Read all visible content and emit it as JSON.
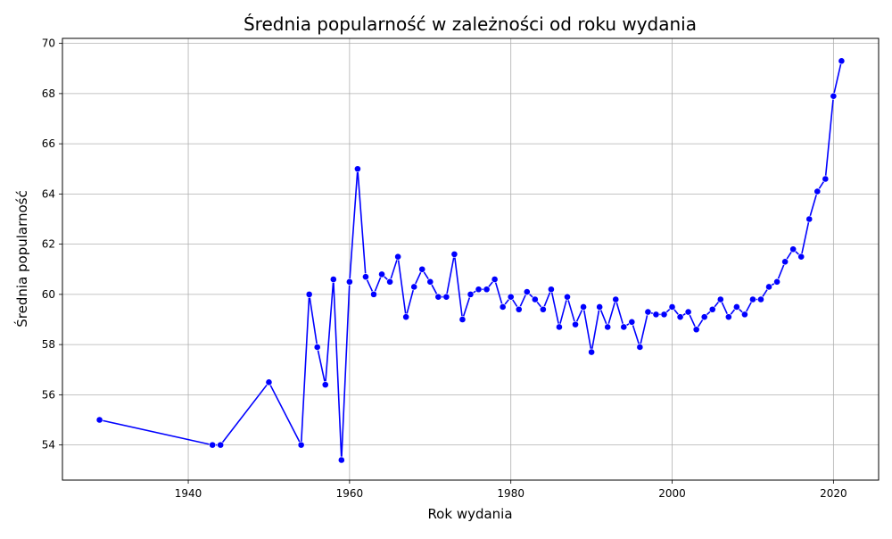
{
  "chart_data": {
    "type": "line",
    "title": "Średnia popularność w zależności od roku wydania",
    "xlabel": "Rok wydania",
    "ylabel": "Średnia popularność",
    "xlim": [
      1924.4,
      2025.6
    ],
    "ylim": [
      52.6,
      70.2
    ],
    "xticks": [
      1940,
      1960,
      1980,
      2000,
      2020
    ],
    "yticks": [
      54,
      56,
      58,
      60,
      62,
      64,
      66,
      68,
      70
    ],
    "grid": true,
    "legend": "none",
    "series": [
      {
        "color": "#0000ff",
        "marker": "circle",
        "x": [
          1929,
          1943,
          1944,
          1950,
          1954,
          1955,
          1956,
          1957,
          1958,
          1959,
          1960,
          1961,
          1962,
          1963,
          1964,
          1965,
          1966,
          1967,
          1968,
          1969,
          1970,
          1971,
          1972,
          1973,
          1974,
          1975,
          1976,
          1977,
          1978,
          1979,
          1980,
          1981,
          1982,
          1983,
          1984,
          1985,
          1986,
          1987,
          1988,
          1989,
          1990,
          1991,
          1992,
          1993,
          1994,
          1995,
          1996,
          1997,
          1998,
          1999,
          2000,
          2001,
          2002,
          2003,
          2004,
          2005,
          2006,
          2007,
          2008,
          2009,
          2010,
          2011,
          2012,
          2013,
          2014,
          2015,
          2016,
          2017,
          2018,
          2019,
          2020,
          2021
        ],
        "y": [
          55.0,
          54.0,
          54.0,
          56.5,
          54.0,
          60.0,
          57.9,
          56.4,
          60.6,
          53.4,
          60.5,
          65.0,
          60.7,
          60.0,
          60.8,
          60.5,
          61.5,
          59.1,
          60.3,
          61.0,
          60.5,
          59.9,
          59.9,
          61.6,
          59.0,
          60.0,
          60.2,
          60.2,
          60.6,
          59.5,
          59.9,
          59.4,
          60.1,
          59.8,
          59.4,
          60.2,
          58.7,
          59.9,
          58.8,
          59.5,
          57.7,
          59.5,
          58.7,
          59.8,
          58.7,
          58.9,
          57.9,
          59.3,
          59.2,
          59.2,
          59.5,
          59.1,
          59.3,
          58.6,
          59.1,
          59.4,
          59.8,
          59.1,
          59.5,
          59.2,
          59.8,
          59.8,
          60.3,
          60.5,
          61.3,
          61.8,
          61.5,
          63.0,
          64.1,
          64.6,
          67.9,
          69.3
        ]
      }
    ]
  }
}
